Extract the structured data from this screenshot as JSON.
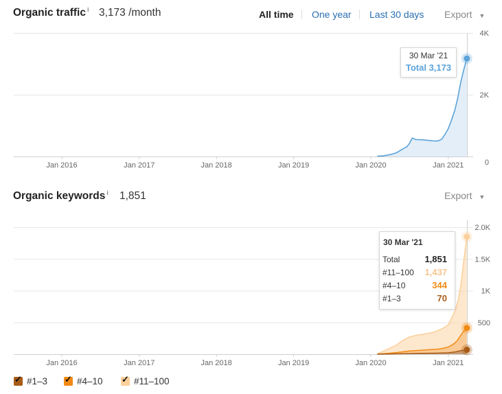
{
  "traffic": {
    "title": "Organic traffic",
    "info": "i",
    "summary": "3,173 /month",
    "ranges": [
      "All time",
      "One year",
      "Last 30 days"
    ],
    "active_range": "All time",
    "export_label": "Export",
    "export_arrow": "▼",
    "tooltip": {
      "date": "30 Mar '21",
      "label": "Total 3,173"
    }
  },
  "keywords": {
    "title": "Organic keywords",
    "info": "i",
    "summary": "1,851",
    "export_label": "Export",
    "export_arrow": "▼",
    "tooltip": {
      "date": "30 Mar '21",
      "rows": [
        {
          "label": "Total",
          "value": "1,851"
        },
        {
          "label": "#11–100",
          "value": "1,437"
        },
        {
          "label": "#4–10",
          "value": "344"
        },
        {
          "label": "#1–3",
          "value": "70"
        }
      ]
    },
    "legend": [
      {
        "label": "#1–3",
        "check": "✓"
      },
      {
        "label": "#4–10",
        "check": "✓"
      },
      {
        "label": "#11–100",
        "check": "✓"
      }
    ]
  },
  "colors": {
    "traffic_line": "#5ba3d9",
    "traffic_fill": "#e3eef9",
    "traffic_text": "#5ba3d9",
    "kw_top3": "#a85c18",
    "kw_4_10": "#f28a14",
    "kw_11_100": "#fbd09b",
    "kw_11_100_text": "#f7c690"
  },
  "chart_data": [
    {
      "type": "area",
      "title": "Organic traffic",
      "x": [
        "2020-02-01",
        "2020-03-01",
        "2020-04-01",
        "2020-05-01",
        "2020-06-01",
        "2020-06-20",
        "2020-07-01",
        "2020-07-15",
        "2020-08-01",
        "2020-09-01",
        "2020-10-01",
        "2020-11-01",
        "2020-11-15",
        "2020-12-01",
        "2020-12-15",
        "2021-01-01",
        "2021-01-15",
        "2021-02-01",
        "2021-02-15",
        "2021-03-01",
        "2021-03-15",
        "2021-03-30"
      ],
      "series": [
        {
          "values": [
            10,
            25,
            60,
            120,
            250,
            320,
            420,
            600,
            550,
            540,
            520,
            500,
            510,
            560,
            700,
            900,
            1150,
            1500,
            1900,
            2400,
            2800,
            3173
          ]
        }
      ],
      "xticks": [
        "Jan 2016",
        "Jan 2017",
        "Jan 2018",
        "Jan 2019",
        "Jan 2020",
        "Jan 2021"
      ],
      "yticks": [
        "0",
        "2K",
        "4K"
      ],
      "ylim": [
        0,
        4000
      ],
      "grid": true
    },
    {
      "type": "area",
      "title": "Organic keywords",
      "x": [
        "2020-02-01",
        "2020-03-01",
        "2020-04-01",
        "2020-05-01",
        "2020-06-01",
        "2020-07-01",
        "2020-08-01",
        "2020-09-01",
        "2020-10-01",
        "2020-11-01",
        "2020-12-01",
        "2021-01-01",
        "2021-01-15",
        "2021-02-01",
        "2021-02-15",
        "2021-03-01",
        "2021-03-15",
        "2021-03-30"
      ],
      "series": [
        {
          "name": "#1–3",
          "values": [
            0,
            2,
            4,
            6,
            8,
            10,
            12,
            14,
            15,
            16,
            18,
            22,
            28,
            35,
            45,
            55,
            62,
            70
          ]
        },
        {
          "name": "#4–10",
          "values": [
            1,
            6,
            12,
            20,
            30,
            40,
            45,
            50,
            55,
            60,
            70,
            90,
            110,
            140,
            180,
            240,
            300,
            344
          ]
        },
        {
          "name": "#11–100",
          "values": [
            10,
            40,
            80,
            120,
            180,
            220,
            240,
            250,
            260,
            280,
            310,
            350,
            420,
            500,
            600,
            780,
            1100,
            1437
          ]
        }
      ],
      "xticks": [
        "Jan 2016",
        "Jan 2017",
        "Jan 2018",
        "Jan 2019",
        "Jan 2020",
        "Jan 2021"
      ],
      "yticks": [
        "500",
        "1K",
        "1.5K",
        "2.0K"
      ],
      "ylim": [
        0,
        2000
      ],
      "grid": true,
      "stacked": true
    }
  ]
}
